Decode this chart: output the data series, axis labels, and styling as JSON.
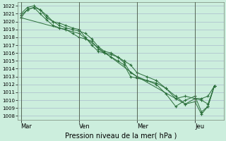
{
  "xlabel": "Pression niveau de la mer( hPa )",
  "bg_color": "#cceedd",
  "grid_color": "#aabbcc",
  "line_color": "#2a6e3a",
  "ylim": [
    1007.5,
    1022.5
  ],
  "yticks": [
    1008,
    1009,
    1010,
    1011,
    1012,
    1013,
    1014,
    1015,
    1016,
    1017,
    1018,
    1019,
    1020,
    1021,
    1022
  ],
  "xtick_labels": [
    "Mar",
    "Ven",
    "Mer",
    "Jeu"
  ],
  "xtick_positions": [
    0.0,
    36.0,
    72.0,
    108.0
  ],
  "xlim": [
    -2,
    126
  ],
  "day_lines": [
    0.0,
    36.0,
    72.0,
    108.0
  ],
  "series1_x": [
    0,
    4,
    8,
    12,
    16,
    20,
    24,
    28,
    32,
    36,
    40,
    44,
    48,
    52,
    56,
    60,
    64,
    68,
    72,
    78,
    84,
    90,
    96,
    102,
    108,
    112,
    116,
    120
  ],
  "series1_y": [
    1020.5,
    1021.5,
    1021.8,
    1021.5,
    1020.8,
    1020.0,
    1019.5,
    1019.2,
    1019.0,
    1018.8,
    1018.5,
    1017.8,
    1016.8,
    1016.2,
    1016.0,
    1015.5,
    1015.0,
    1014.5,
    1013.5,
    1013.0,
    1012.5,
    1011.5,
    1010.5,
    1009.5,
    1010.2,
    1010.2,
    1010.5,
    1011.8
  ],
  "series2_x": [
    0,
    4,
    8,
    12,
    16,
    20,
    24,
    28,
    32,
    36,
    40,
    44,
    48,
    52,
    56,
    60,
    64,
    68,
    72,
    78,
    84,
    90,
    96,
    102,
    108,
    112,
    116,
    120
  ],
  "series2_y": [
    1021.0,
    1021.8,
    1022.0,
    1021.5,
    1020.5,
    1020.0,
    1019.8,
    1019.5,
    1019.2,
    1019.0,
    1018.0,
    1017.0,
    1016.2,
    1016.0,
    1015.8,
    1015.5,
    1014.8,
    1013.5,
    1013.0,
    1012.5,
    1012.2,
    1011.5,
    1010.2,
    1010.5,
    1010.2,
    1010.0,
    1009.5,
    1011.8
  ],
  "series3_x": [
    0,
    4,
    8,
    12,
    16,
    20,
    24,
    28,
    32,
    36,
    40,
    44,
    48,
    52,
    56,
    60,
    64,
    68,
    72,
    78,
    84,
    90,
    96,
    102,
    108,
    112,
    116,
    120
  ],
  "series3_y": [
    1020.8,
    1021.5,
    1021.8,
    1021.0,
    1020.2,
    1019.5,
    1019.2,
    1019.0,
    1018.5,
    1018.0,
    1017.8,
    1017.5,
    1016.5,
    1016.0,
    1015.5,
    1015.0,
    1014.5,
    1013.0,
    1012.8,
    1012.5,
    1012.0,
    1010.8,
    1009.2,
    1010.0,
    1010.5,
    1008.5,
    1009.2,
    1011.8
  ],
  "series4_x": [
    0,
    36,
    72,
    102,
    108,
    112,
    116,
    120
  ],
  "series4_y": [
    1020.5,
    1018.5,
    1013.0,
    1009.5,
    1009.8,
    1008.2,
    1009.2,
    1011.8
  ]
}
